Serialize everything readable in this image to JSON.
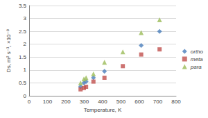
{
  "chart_data": {
    "type": "scatter",
    "x_label": "Temperature, K",
    "y_label": "Ds, m² s⁻¹, ×10⁻⁸",
    "x": [
      280,
      298,
      310,
      350,
      410,
      510,
      610,
      710
    ],
    "series": [
      {
        "name": "ortho",
        "color": "#4a7ebb",
        "marker": "diamond",
        "values": [
          0.35,
          0.5,
          0.55,
          0.7,
          0.95,
          null,
          1.95,
          2.5
        ]
      },
      {
        "name": "meta",
        "color": "#c0504d",
        "marker": "square",
        "values": [
          0.25,
          0.3,
          0.35,
          0.55,
          0.7,
          1.15,
          1.6,
          1.8
        ]
      },
      {
        "name": "para",
        "color": "#9bbb59",
        "marker": "triangle",
        "values": [
          0.5,
          0.65,
          0.7,
          0.85,
          1.3,
          1.7,
          2.45,
          2.95
        ]
      }
    ],
    "xlim": [
      0,
      800
    ],
    "xticks": [
      0,
      100,
      200,
      300,
      400,
      500,
      600,
      700,
      800
    ],
    "ylim": [
      0,
      3.5
    ],
    "yticks": [
      0,
      0.5,
      1,
      1.5,
      2,
      2.5,
      3,
      3.5
    ],
    "grid": true,
    "legend": "right"
  }
}
